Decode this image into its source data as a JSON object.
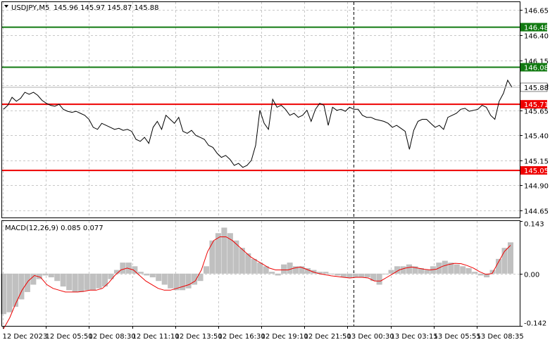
{
  "header": {
    "symbol_label": "USDJPY,M5",
    "ohlc_label": "145.96 145.97 145.87 145.88"
  },
  "colors": {
    "background": "#ffffff",
    "grid": "#c8c8c8",
    "axis": "#000000",
    "price_line": "#000000",
    "support_green": "#117a11",
    "resistance_red": "#ee0000",
    "macd_histogram": "#c0c0c0",
    "macd_signal": "#ee0000",
    "current_price_tag": "#ffffff",
    "session_separator": "#000000"
  },
  "chart_data": [
    {
      "type": "line",
      "panel": "price",
      "title": "USDJPY,M5",
      "ylim": [
        144.58,
        146.73
      ],
      "y_ticks": [
        "146.65",
        "146.40",
        "146.15",
        "145.90",
        "145.65",
        "145.40",
        "145.15",
        "144.90",
        "144.65"
      ],
      "x_ticks": [
        "12 Dec 2023",
        "12 Dec 05:50",
        "12 Dec 08:30",
        "12 Dec 11:10",
        "12 Dec 13:50",
        "12 Dec 16:30",
        "12 Dec 19:10",
        "12 Dec 21:50",
        "13 Dec 00:30",
        "13 Dec 03:15",
        "13 Dec 05:55",
        "13 Dec 08:35"
      ],
      "levels": [
        {
          "value": "146.48",
          "kind": "green"
        },
        {
          "value": "146.08",
          "kind": "green"
        },
        {
          "value": "145.71",
          "kind": "red"
        },
        {
          "value": "145.05",
          "kind": "red"
        }
      ],
      "current_price": "145.88",
      "grid": true,
      "series": [
        {
          "values": [
            145.66,
            145.7,
            145.78,
            145.74,
            145.77,
            145.83,
            145.81,
            145.83,
            145.8,
            145.75,
            145.72,
            145.7,
            145.69,
            145.71,
            145.66,
            145.64,
            145.63,
            145.64,
            145.62,
            145.6,
            145.56,
            145.48,
            145.46,
            145.52,
            145.5,
            145.48,
            145.46,
            145.47,
            145.45,
            145.46,
            145.44,
            145.36,
            145.34,
            145.38,
            145.32,
            145.48,
            145.54,
            145.46,
            145.6,
            145.56,
            145.52,
            145.58,
            145.44,
            145.42,
            145.45,
            145.4,
            145.38,
            145.36,
            145.3,
            145.28,
            145.22,
            145.18,
            145.2,
            145.16,
            145.1,
            145.12,
            145.08,
            145.1,
            145.15,
            145.3,
            145.65,
            145.52,
            145.46,
            145.76,
            145.68,
            145.7,
            145.66,
            145.6,
            145.62,
            145.58,
            145.6,
            145.65,
            145.54,
            145.66,
            145.72,
            145.7,
            145.5,
            145.68,
            145.65,
            145.66,
            145.64,
            145.68,
            145.66,
            145.66,
            145.6,
            145.58,
            145.58,
            145.56,
            145.55,
            145.54,
            145.52,
            145.48,
            145.5,
            145.47,
            145.44,
            145.26,
            145.45,
            145.54,
            145.56,
            145.56,
            145.52,
            145.48,
            145.5,
            145.46,
            145.58,
            145.6,
            145.62,
            145.66,
            145.67,
            145.64,
            145.65,
            145.66,
            145.7,
            145.68,
            145.6,
            145.56,
            145.74,
            145.82,
            145.95,
            145.88
          ]
        }
      ]
    },
    {
      "type": "bar",
      "panel": "indicator",
      "title": "MACD(12,26,9) 0.085 0.077",
      "ylim": [
        -0.142,
        0.143
      ],
      "y_ticks": [
        "0.143",
        "0.00",
        "-0.142"
      ],
      "grid": true,
      "series": [
        {
          "style": "histogram",
          "values": [
            -0.11,
            -0.105,
            -0.09,
            -0.07,
            -0.05,
            -0.03,
            -0.015,
            -0.005,
            -0.01,
            -0.02,
            -0.035,
            -0.045,
            -0.05,
            -0.05,
            -0.045,
            -0.045,
            -0.04,
            -0.035,
            -0.015,
            0.01,
            0.03,
            0.03,
            0.02,
            0.005,
            -0.005,
            -0.01,
            -0.02,
            -0.03,
            -0.04,
            -0.045,
            -0.045,
            -0.04,
            -0.03,
            -0.02,
            0.02,
            0.09,
            0.11,
            0.125,
            0.11,
            0.09,
            0.07,
            0.055,
            0.04,
            0.03,
            0.02,
            0.005,
            -0.005,
            0.025,
            0.03,
            0.02,
            0.02,
            0.015,
            0.01,
            0.005,
            0.005,
            0.0,
            -0.005,
            -0.01,
            -0.012,
            -0.01,
            -0.01,
            -0.01,
            -0.02,
            -0.03,
            0.0,
            0.01,
            0.02,
            0.02,
            0.025,
            0.02,
            0.015,
            0.01,
            0.02,
            0.03,
            0.035,
            0.03,
            0.025,
            0.02,
            0.015,
            0.005,
            -0.005,
            -0.01,
            0.01,
            0.04,
            0.07,
            0.085
          ]
        },
        {
          "style": "signal-line",
          "values": [
            -0.15,
            -0.12,
            -0.08,
            -0.045,
            -0.02,
            -0.005,
            -0.01,
            -0.03,
            -0.04,
            -0.045,
            -0.05,
            -0.05,
            -0.05,
            -0.048,
            -0.045,
            -0.045,
            -0.04,
            -0.025,
            -0.005,
            0.01,
            0.015,
            0.01,
            -0.005,
            -0.02,
            -0.03,
            -0.04,
            -0.045,
            -0.045,
            -0.04,
            -0.035,
            -0.03,
            -0.02,
            0.01,
            0.06,
            0.09,
            0.1,
            0.1,
            0.09,
            0.075,
            0.06,
            0.045,
            0.035,
            0.025,
            0.015,
            0.01,
            0.01,
            0.01,
            0.015,
            0.018,
            0.012,
            0.005,
            0.0,
            -0.003,
            -0.006,
            -0.008,
            -0.01,
            -0.012,
            -0.01,
            -0.01,
            -0.012,
            -0.02,
            -0.02,
            -0.01,
            0.0,
            0.01,
            0.015,
            0.018,
            0.015,
            0.012,
            0.01,
            0.012,
            0.02,
            0.025,
            0.028,
            0.027,
            0.022,
            0.015,
            0.005,
            -0.002,
            0.0,
            0.03,
            0.06,
            0.077
          ]
        }
      ]
    }
  ]
}
